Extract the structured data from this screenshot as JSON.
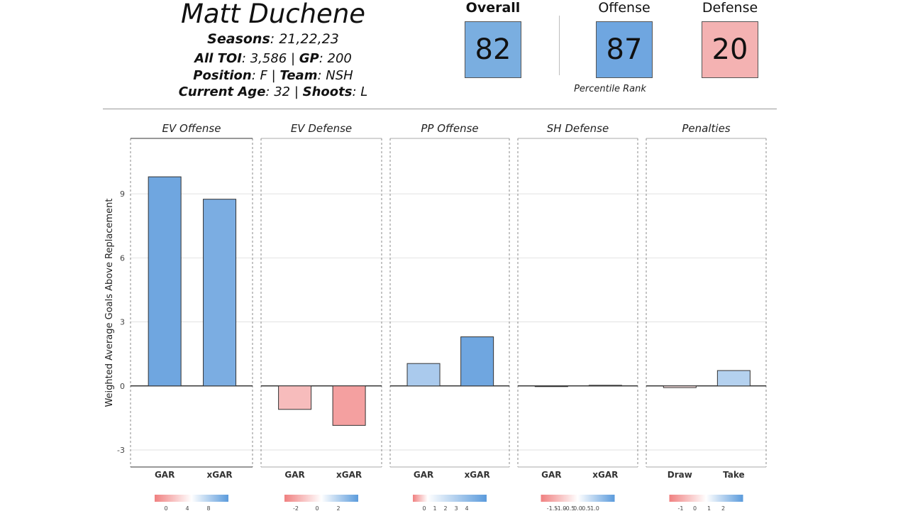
{
  "player": {
    "name": "Matt Duchene",
    "seasons_label": "Seasons",
    "seasons": "21,22,23",
    "toi_label": "All TOI",
    "toi": "3,586",
    "gp_label": "GP",
    "gp": "200",
    "position_label": "Position",
    "position": "F",
    "team_label": "Team",
    "team": "NSH",
    "age_label": "Current Age",
    "age": "32",
    "shoots_label": "Shoots",
    "shoots": "L"
  },
  "ratings": {
    "overall_label": "Overall",
    "overall": "82",
    "offense_label": "Offense",
    "offense": "87",
    "defense_label": "Defense",
    "defense": "20",
    "percentile_label": "Percentile Rank",
    "colors": {
      "overall": "#7aaee0",
      "offense": "#6fa6e0",
      "defense": "#f4b2b2"
    }
  },
  "chart_data": {
    "type": "bar",
    "ylabel": "Weighted Average Goals Above Replacement",
    "ylim": [
      -3.8,
      11.6
    ],
    "yticks": [
      -3,
      0,
      3,
      6,
      9
    ],
    "grid": true,
    "panels": [
      {
        "title": "EV Offense",
        "categories": [
          "GAR",
          "xGAR"
        ],
        "values": [
          9.8,
          8.75
        ],
        "legend": {
          "ticks": [
            "0",
            "4",
            "8"
          ]
        }
      },
      {
        "title": "EV Defense",
        "categories": [
          "GAR",
          "xGAR"
        ],
        "values": [
          -1.1,
          -1.85
        ],
        "legend": {
          "ticks": [
            "-2",
            "0",
            "2"
          ]
        }
      },
      {
        "title": "PP Offense",
        "categories": [
          "GAR",
          "xGAR"
        ],
        "values": [
          1.05,
          2.3
        ],
        "legend": {
          "ticks": [
            "0",
            "1",
            "2",
            "3",
            "4"
          ]
        }
      },
      {
        "title": "SH Defense",
        "categories": [
          "GAR",
          "xGAR"
        ],
        "values": [
          0.0,
          0.03
        ],
        "legend": {
          "ticks": [
            "-1.5",
            "-1.0",
            "-0.5",
            "0.0",
            "0.5",
            "1.0"
          ]
        }
      },
      {
        "title": "Penalties",
        "categories": [
          "Draw",
          "Take"
        ],
        "values": [
          -0.08,
          0.72
        ],
        "legend": {
          "ticks": [
            "-1",
            "0",
            "1",
            "2"
          ]
        }
      }
    ],
    "colors": {
      "positive": "#6fa6e0",
      "negative": "#f39a9a",
      "neutral": "#ffffff"
    }
  }
}
